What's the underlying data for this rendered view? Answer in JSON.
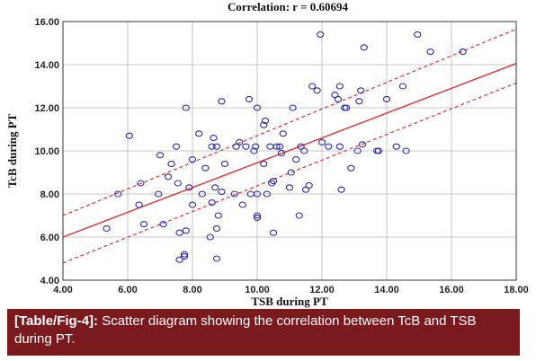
{
  "colors": {
    "caption_bg": "#7a1a1f",
    "grid": "#b8b8b8",
    "point": "#2a2aa8",
    "fit_line": "#e23030",
    "ci_line": "#e23030"
  },
  "caption": {
    "tag": "[Table/Fig-4]:",
    "text": " Scatter diagram showing the correlation between TcB and TSB during PT."
  },
  "chart_data": {
    "type": "scatter",
    "title": "Correlation: r = 0.60694",
    "xlabel": "TSB during PT",
    "ylabel": "TcB during PT",
    "xlim": [
      4,
      18
    ],
    "ylim": [
      4,
      16
    ],
    "xticks": [
      "4.00",
      "6.00",
      "8.00",
      "10.00",
      "12.00",
      "14.00",
      "16.00",
      "18.00"
    ],
    "yticks": [
      "4.00",
      "6.00",
      "8.00",
      "10.00",
      "12.00",
      "14.00",
      "16.00"
    ],
    "grid": true,
    "series": [
      {
        "points": [
          [
            5.35,
            6.4
          ],
          [
            5.7,
            8.0
          ],
          [
            6.05,
            10.7
          ],
          [
            6.35,
            7.5
          ],
          [
            6.4,
            8.5
          ],
          [
            6.5,
            6.6
          ],
          [
            6.95,
            8.0
          ],
          [
            7.0,
            9.8
          ],
          [
            7.1,
            6.6
          ],
          [
            7.25,
            8.8
          ],
          [
            7.35,
            9.4
          ],
          [
            7.5,
            10.2
          ],
          [
            7.55,
            8.5
          ],
          [
            7.6,
            6.2
          ],
          [
            7.6,
            4.95
          ],
          [
            7.75,
            5.1
          ],
          [
            7.75,
            5.2
          ],
          [
            7.8,
            12.0
          ],
          [
            7.8,
            6.3
          ],
          [
            7.9,
            8.3
          ],
          [
            8.0,
            9.6
          ],
          [
            8.0,
            7.5
          ],
          [
            8.2,
            10.8
          ],
          [
            8.3,
            8.0
          ],
          [
            8.4,
            9.2
          ],
          [
            8.55,
            6.0
          ],
          [
            8.6,
            7.6
          ],
          [
            8.6,
            10.2
          ],
          [
            8.65,
            10.6
          ],
          [
            8.7,
            8.3
          ],
          [
            8.75,
            10.2
          ],
          [
            8.75,
            6.4
          ],
          [
            8.75,
            5.0
          ],
          [
            8.8,
            7.0
          ],
          [
            8.9,
            12.3
          ],
          [
            8.9,
            8.1
          ],
          [
            9.0,
            9.4
          ],
          [
            9.3,
            8.0
          ],
          [
            9.35,
            10.2
          ],
          [
            9.45,
            10.4
          ],
          [
            9.55,
            7.5
          ],
          [
            9.65,
            10.2
          ],
          [
            9.75,
            12.4
          ],
          [
            9.8,
            8.0
          ],
          [
            9.9,
            10.0
          ],
          [
            9.95,
            10.2
          ],
          [
            10.0,
            8.0
          ],
          [
            10.0,
            7.0
          ],
          [
            10.0,
            6.9
          ],
          [
            10.0,
            12.0
          ],
          [
            10.2,
            11.2
          ],
          [
            10.2,
            9.4
          ],
          [
            10.25,
            11.4
          ],
          [
            10.3,
            8.0
          ],
          [
            10.4,
            10.2
          ],
          [
            10.45,
            8.5
          ],
          [
            10.5,
            6.2
          ],
          [
            10.5,
            8.6
          ],
          [
            10.6,
            10.2
          ],
          [
            10.7,
            10.2
          ],
          [
            10.75,
            9.9
          ],
          [
            10.8,
            10.8
          ],
          [
            11.0,
            8.3
          ],
          [
            11.05,
            9.0
          ],
          [
            11.1,
            12.0
          ],
          [
            11.2,
            9.6
          ],
          [
            11.3,
            7.0
          ],
          [
            11.35,
            10.2
          ],
          [
            11.45,
            10.0
          ],
          [
            11.5,
            8.2
          ],
          [
            11.6,
            8.4
          ],
          [
            11.7,
            13.0
          ],
          [
            11.85,
            12.8
          ],
          [
            11.95,
            15.4
          ],
          [
            12.0,
            10.4
          ],
          [
            12.2,
            10.2
          ],
          [
            12.4,
            12.6
          ],
          [
            12.5,
            12.4
          ],
          [
            12.55,
            13.0
          ],
          [
            12.55,
            10.2
          ],
          [
            12.6,
            8.2
          ],
          [
            12.7,
            12.0
          ],
          [
            12.75,
            12.0
          ],
          [
            12.9,
            9.2
          ],
          [
            13.1,
            10.0
          ],
          [
            13.15,
            12.3
          ],
          [
            13.2,
            12.8
          ],
          [
            13.25,
            10.3
          ],
          [
            13.3,
            14.8
          ],
          [
            13.7,
            10.0
          ],
          [
            13.75,
            10.0
          ],
          [
            14.0,
            12.4
          ],
          [
            14.3,
            10.2
          ],
          [
            14.5,
            13.0
          ],
          [
            14.6,
            10.0
          ],
          [
            14.95,
            15.4
          ],
          [
            15.35,
            14.6
          ],
          [
            16.35,
            14.6
          ]
        ]
      }
    ],
    "fit_line": {
      "slope": 0.5754,
      "intercept": 3.697
    },
    "confidence_band": {
      "upper": [
        [
          4.0,
          7.0
        ],
        [
          18.0,
          15.65
        ]
      ],
      "lower": [
        [
          4.0,
          4.8
        ],
        [
          18.0,
          13.15
        ]
      ]
    }
  }
}
